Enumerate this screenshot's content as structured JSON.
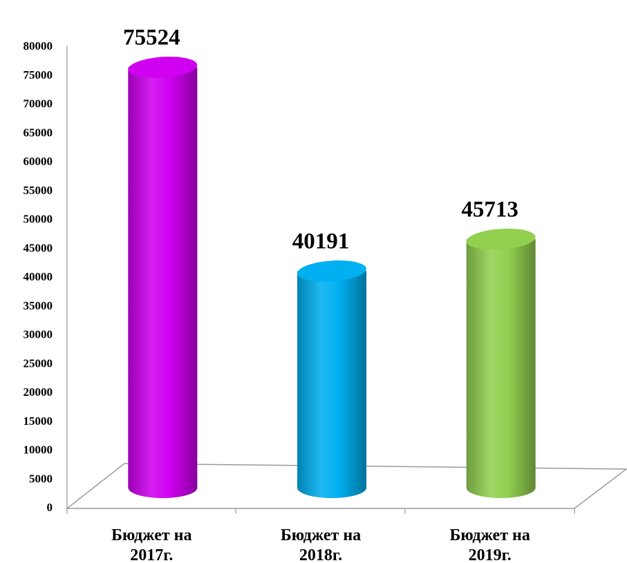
{
  "chart_data": {
    "type": "bar",
    "title": "",
    "xlabel": "",
    "ylabel": "",
    "ylim": [
      0,
      80000
    ],
    "ytick_step": 5000,
    "grid": false,
    "legend": "none",
    "categories": [
      [
        "Бюджет на",
        "2017г."
      ],
      [
        "Бюджет на",
        "2018г."
      ],
      [
        "Бюджет на",
        "2019г."
      ]
    ],
    "values": [
      75524,
      40191,
      45713
    ],
    "data_labels": [
      "75524",
      "40191",
      "45713"
    ],
    "colors": [
      "#d000f0",
      "#00b0f0",
      "#92d050"
    ]
  }
}
